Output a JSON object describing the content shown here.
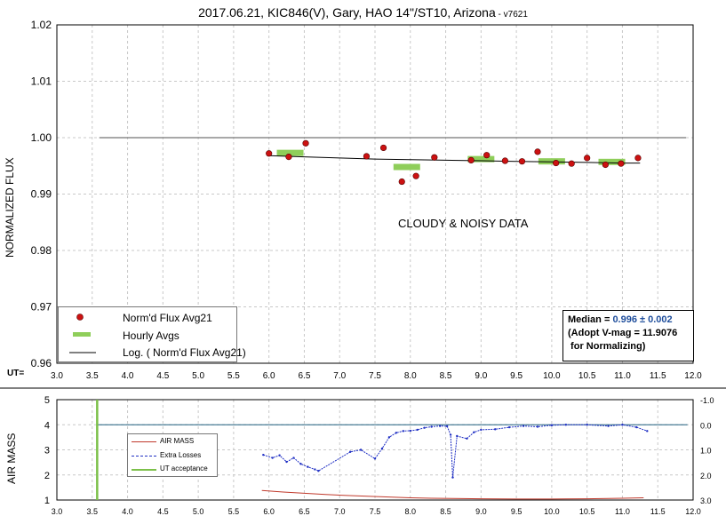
{
  "title": "2017.06.21, KIC846(V), Gary, HAO 14\"/ST10, Arizona",
  "title_version": " - v7621",
  "annotation": "CLOUDY & NOISY DATA",
  "ut_label": "UT=",
  "median_box": {
    "line1_prefix": "Median = ",
    "line1_value": "0.996 ± 0.002",
    "line2": "(Adopt V-mag = 11.9076",
    "line3": " for Normalizing)"
  },
  "colors": {
    "marker": "#cc1111",
    "hourly": "#8fce5a",
    "airmass": "#c0392b",
    "extra_losses": "#1f2fc4",
    "acceptance": "#7cc04a",
    "reference": "#8c8c8c",
    "grid": "#c8c8c8",
    "zero_line": "#1f5f7f"
  },
  "chart_data": [
    {
      "type": "scatter",
      "ylabel": "NORMALIZED FLUX",
      "xlim": [
        3.0,
        12.0
      ],
      "ylim": [
        0.96,
        1.02
      ],
      "grid": true,
      "legend_position": "bottom-left",
      "x_ticks": [
        "3.0",
        "3.5",
        "4.0",
        "4.5",
        "5.0",
        "5.5",
        "6.0",
        "6.5",
        "7.0",
        "7.5",
        "8.0",
        "8.5",
        "9.0",
        "9.5",
        "10.0",
        "10.5",
        "11.0",
        "11.5",
        "12.0"
      ],
      "y_ticks": [
        "0.96",
        "0.97",
        "0.98",
        "0.99",
        "1.00",
        "1.01",
        "1.02"
      ],
      "series": [
        {
          "name": "Norm'd Flux Avg21",
          "kind": "points",
          "x": [
            6.0,
            6.28,
            6.52,
            7.38,
            7.62,
            7.88,
            8.08,
            8.34,
            8.86,
            9.08,
            9.34,
            9.58,
            9.8,
            10.06,
            10.28,
            10.5,
            10.76,
            10.98,
            11.22
          ],
          "y": [
            0.9972,
            0.9966,
            0.999,
            0.9967,
            0.9982,
            0.9922,
            0.9932,
            0.9965,
            0.996,
            0.9969,
            0.9959,
            0.9958,
            0.9975,
            0.9955,
            0.9954,
            0.9964,
            0.9952,
            0.9954,
            0.9964
          ]
        },
        {
          "name": "Hourly Avgs",
          "kind": "segments",
          "x": [
            6.3,
            7.95,
            9.0,
            10.0,
            10.85
          ],
          "y": [
            0.9973,
            0.9948,
            0.9962,
            0.9958,
            0.9957
          ]
        },
        {
          "name": "Log. ( Norm'd Flux Avg21)",
          "kind": "line",
          "x": [
            6.0,
            6.5,
            7.0,
            7.5,
            8.0,
            8.5,
            9.0,
            9.5,
            10.0,
            10.5,
            11.0,
            11.25
          ],
          "y": [
            0.9968,
            0.9966,
            0.9964,
            0.9962,
            0.9961,
            0.996,
            0.9959,
            0.9958,
            0.9957,
            0.9956,
            0.9955,
            0.9955
          ]
        },
        {
          "name": "",
          "kind": "reference",
          "x": [
            3.6,
            11.9
          ],
          "y": [
            1.0,
            1.0
          ]
        }
      ]
    },
    {
      "type": "line",
      "ylabel": "AIR MASS",
      "xlim": [
        3.0,
        12.0
      ],
      "ylim": [
        1,
        5
      ],
      "y2lim": [
        3.0,
        -1.0
      ],
      "grid": true,
      "legend_position": "left",
      "x_ticks": [
        "3.0",
        "3.5",
        "4.0",
        "4.5",
        "5.0",
        "5.5",
        "6.0",
        "6.5",
        "7.0",
        "7.5",
        "8.0",
        "8.5",
        "9.0",
        "9.5",
        "10.0",
        "10.5",
        "11.0",
        "11.5",
        "12.0"
      ],
      "y_ticks": [
        "1",
        "2",
        "3",
        "4",
        "5"
      ],
      "y2_ticks": [
        "3.0",
        "2.0",
        "1.0",
        "0.0",
        "-1.0"
      ],
      "series": [
        {
          "name": "AIR MASS",
          "x": [
            5.9,
            6.2,
            6.5,
            6.8,
            7.1,
            7.4,
            7.7,
            8.0,
            8.3,
            8.6,
            9.0,
            9.5,
            10.0,
            10.5,
            11.0,
            11.3
          ],
          "y": [
            1.38,
            1.32,
            1.27,
            1.22,
            1.18,
            1.15,
            1.12,
            1.09,
            1.07,
            1.06,
            1.05,
            1.04,
            1.04,
            1.05,
            1.07,
            1.09
          ]
        },
        {
          "name": "Extra Losses",
          "x": [
            5.92,
            6.05,
            6.15,
            6.25,
            6.35,
            6.45,
            6.55,
            6.65,
            6.7,
            7.15,
            7.3,
            7.5,
            7.6,
            7.7,
            7.8,
            7.9,
            8.0,
            8.1,
            8.2,
            8.3,
            8.42,
            8.52,
            8.57,
            8.6,
            8.66,
            8.8,
            8.9,
            9.0,
            9.2,
            9.4,
            9.6,
            9.8,
            10.0,
            10.2,
            10.5,
            10.8,
            11.0,
            11.2,
            11.35
          ],
          "y": [
            1.2,
            1.32,
            1.22,
            1.48,
            1.32,
            1.56,
            1.68,
            1.78,
            1.84,
            1.08,
            1.0,
            1.35,
            0.95,
            0.5,
            0.32,
            0.25,
            0.24,
            0.2,
            0.12,
            0.08,
            0.05,
            0.06,
            0.4,
            2.1,
            0.45,
            0.55,
            0.3,
            0.2,
            0.18,
            0.1,
            0.05,
            0.08,
            0.02,
            0.0,
            0.0,
            0.05,
            0.0,
            0.1,
            0.25
          ]
        },
        {
          "name": "UT acceptance",
          "x": [
            3.57,
            3.57
          ],
          "y": [
            1,
            5
          ]
        },
        {
          "name": "",
          "kind": "reference",
          "x": [
            3.57,
            11.92
          ],
          "y2": [
            0.0,
            0.0
          ]
        }
      ]
    }
  ]
}
